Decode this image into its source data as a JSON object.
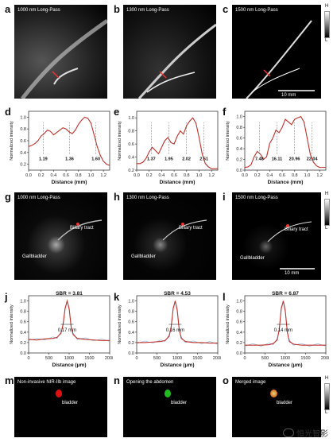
{
  "panels": {
    "a": {
      "letter": "a",
      "title": "1000 nm Long-Pass"
    },
    "b": {
      "letter": "b",
      "title": "1300 nm Long-Pass"
    },
    "c": {
      "letter": "c",
      "title": "1500 nm Long-Pass",
      "scale": "10 mm"
    },
    "g": {
      "letter": "g",
      "title": "1000 nm Long-Pass",
      "biliary": "Biliary tract",
      "gall": "Gallbladder"
    },
    "h": {
      "letter": "h",
      "title": "1300 nm Long-Pass",
      "biliary": "Biliary tract",
      "gall": "Gallbladder"
    },
    "i": {
      "letter": "i",
      "title": "1500 nm Long-Pass",
      "biliary": "Biliary tract",
      "gall": "Gallbladder",
      "scale": "10 mm"
    },
    "m": {
      "letter": "m",
      "title": "Non-invasive NIR-IIb image",
      "organ": "bladder"
    },
    "n": {
      "letter": "n",
      "title": "Opening the abdomen",
      "organ": "bladder"
    },
    "o": {
      "letter": "o",
      "title": "Merged image",
      "organ": "bladder"
    }
  },
  "colorbar": {
    "high": "H",
    "low": "L"
  },
  "watermark": "恒光智影",
  "chart_data": [
    {
      "id": "d",
      "type": "line",
      "xlabel": "Distance (mm)",
      "ylabel": "Normalized intensity",
      "xlim": [
        0,
        1.3
      ],
      "ylim": [
        0.1,
        1.1
      ],
      "xticks": [
        "0.0",
        "0.2",
        "0.4",
        "0.6",
        "0.8",
        "1.0",
        "1.2"
      ],
      "yticks": [
        "0.2",
        "0.4",
        "0.6",
        "0.8",
        "1.0"
      ],
      "x": [
        0,
        0.05,
        0.1,
        0.15,
        0.2,
        0.25,
        0.3,
        0.35,
        0.4,
        0.45,
        0.5,
        0.55,
        0.6,
        0.65,
        0.7,
        0.75,
        0.8,
        0.85,
        0.9,
        0.95,
        1.0,
        1.05,
        1.1,
        1.15,
        1.2,
        1.25,
        1.3
      ],
      "y": [
        0.5,
        0.52,
        0.55,
        0.6,
        0.68,
        0.72,
        0.78,
        0.76,
        0.7,
        0.74,
        0.78,
        0.82,
        0.8,
        0.75,
        0.72,
        0.78,
        0.88,
        0.95,
        1.0,
        0.98,
        0.9,
        0.7,
        0.5,
        0.35,
        0.25,
        0.2,
        0.18
      ],
      "annotations": [
        "1.19",
        "1.36",
        "1.60"
      ]
    },
    {
      "id": "e",
      "type": "line",
      "xlabel": "Distance (mm)",
      "ylabel": "Normalized intensity",
      "xlim": [
        0,
        1.3
      ],
      "ylim": [
        0.2,
        1.1
      ],
      "xticks": [
        "0.0",
        "0.2",
        "0.4",
        "0.6",
        "0.8",
        "1.0",
        "1.2"
      ],
      "yticks": [
        "0.2",
        "0.4",
        "0.6",
        "0.8",
        "1.0"
      ],
      "x": [
        0,
        0.05,
        0.1,
        0.15,
        0.2,
        0.25,
        0.3,
        0.35,
        0.4,
        0.45,
        0.5,
        0.55,
        0.6,
        0.65,
        0.7,
        0.75,
        0.8,
        0.85,
        0.9,
        0.95,
        1.0,
        1.05,
        1.1,
        1.15,
        1.2,
        1.25,
        1.3
      ],
      "y": [
        0.3,
        0.3,
        0.32,
        0.38,
        0.48,
        0.55,
        0.5,
        0.45,
        0.55,
        0.65,
        0.7,
        0.62,
        0.6,
        0.72,
        0.8,
        0.75,
        0.88,
        0.95,
        1.0,
        0.92,
        0.7,
        0.45,
        0.3,
        0.25,
        0.22,
        0.22,
        0.22
      ],
      "annotations": [
        "1.37",
        "1.95",
        "2.02",
        "2.51"
      ]
    },
    {
      "id": "f",
      "type": "line",
      "xlabel": "Distance (mm)",
      "ylabel": "Normalized intensity",
      "xlim": [
        0,
        1.3
      ],
      "ylim": [
        0,
        1.1
      ],
      "xticks": [
        "0.0",
        "0.2",
        "0.4",
        "0.6",
        "0.8",
        "1.0",
        "1.2"
      ],
      "yticks": [
        "0.0",
        "0.2",
        "0.4",
        "0.6",
        "0.8",
        "1.0"
      ],
      "x": [
        0,
        0.05,
        0.1,
        0.15,
        0.2,
        0.25,
        0.3,
        0.35,
        0.4,
        0.45,
        0.5,
        0.55,
        0.6,
        0.65,
        0.7,
        0.75,
        0.8,
        0.85,
        0.9,
        0.95,
        1.0,
        1.05,
        1.1,
        1.15,
        1.2,
        1.25,
        1.3
      ],
      "y": [
        0.05,
        0.06,
        0.1,
        0.25,
        0.35,
        0.3,
        0.2,
        0.25,
        0.5,
        0.6,
        0.75,
        0.7,
        0.8,
        0.95,
        0.9,
        0.85,
        0.95,
        0.98,
        1.0,
        0.9,
        0.6,
        0.3,
        0.15,
        0.08,
        0.05,
        0.05,
        0.05
      ],
      "annotations": [
        "7.48",
        "16.11",
        "20.96",
        "22.04"
      ]
    },
    {
      "id": "j",
      "type": "line",
      "xlabel": "Distance (μm)",
      "ylabel": "Normalized intensity",
      "xlim": [
        0,
        2000
      ],
      "ylim": [
        0,
        1.1
      ],
      "title": "SBR = 3.81",
      "fwhm": "0.17 mm",
      "xticks": [
        "0",
        "500",
        "1000",
        "1500",
        "2000"
      ],
      "yticks": [
        "0.0",
        "0.2",
        "0.4",
        "0.6",
        "0.8",
        "1.0"
      ],
      "x": [
        0,
        200,
        400,
        600,
        700,
        800,
        850,
        900,
        950,
        1000,
        1050,
        1100,
        1200,
        1400,
        1600,
        1800,
        2000
      ],
      "y": [
        0.26,
        0.25,
        0.27,
        0.28,
        0.3,
        0.38,
        0.55,
        0.85,
        1.0,
        0.85,
        0.5,
        0.35,
        0.28,
        0.26,
        0.25,
        0.24,
        0.24
      ]
    },
    {
      "id": "k",
      "type": "line",
      "xlabel": "Distance (μm)",
      "ylabel": "Normalized intensity",
      "xlim": [
        0,
        2000
      ],
      "ylim": [
        0,
        1.1
      ],
      "title": "SBR = 4.53",
      "fwhm": "0.16 mm",
      "xticks": [
        "0",
        "500",
        "1000",
        "1500",
        "2000"
      ],
      "yticks": [
        "0.0",
        "0.2",
        "0.4",
        "0.6",
        "0.8",
        "1.0"
      ],
      "x": [
        0,
        200,
        400,
        600,
        700,
        800,
        850,
        900,
        950,
        1000,
        1050,
        1100,
        1200,
        1400,
        1600,
        1800,
        2000
      ],
      "y": [
        0.2,
        0.2,
        0.21,
        0.22,
        0.24,
        0.32,
        0.5,
        0.85,
        1.0,
        0.82,
        0.45,
        0.28,
        0.22,
        0.2,
        0.2,
        0.19,
        0.19
      ]
    },
    {
      "id": "l",
      "type": "line",
      "xlabel": "Distance (μm)",
      "ylabel": "Normalized intensity",
      "xlim": [
        0,
        2000
      ],
      "ylim": [
        0,
        1.1
      ],
      "title": "SBR = 6.87",
      "fwhm": "0.14 mm",
      "xticks": [
        "0",
        "500",
        "1000",
        "1500",
        "2000"
      ],
      "yticks": [
        "0.0",
        "0.2",
        "0.4",
        "0.6",
        "0.8",
        "1.0"
      ],
      "x": [
        0,
        200,
        400,
        600,
        700,
        800,
        850,
        900,
        950,
        1000,
        1050,
        1100,
        1200,
        1400,
        1600,
        1800,
        2000
      ],
      "y": [
        0.15,
        0.15,
        0.15,
        0.16,
        0.18,
        0.25,
        0.45,
        0.85,
        1.0,
        0.8,
        0.4,
        0.22,
        0.17,
        0.15,
        0.15,
        0.15,
        0.15
      ]
    }
  ]
}
